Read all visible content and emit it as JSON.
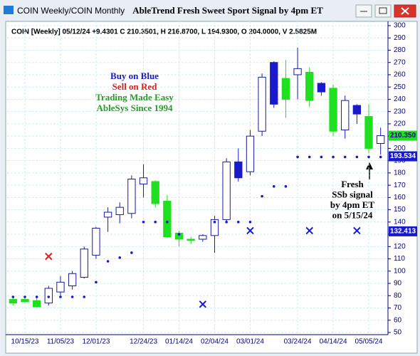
{
  "window": {
    "title": "COIN Weekly/COIN Monthly"
  },
  "chart_data": {
    "type": "candlestick",
    "title": "AbleTrend Fresh Sweet Sport Signal by 4pm ET",
    "subtitle": "COIN [Weekly] 05/12/24 +9.4301 C 210.3501, H 216.8700, L 194.9300, O 204.0000, V 2.5825M",
    "categories": [
      null,
      "10/15/23",
      null,
      null,
      "11/05/23",
      null,
      null,
      "12/01/23",
      null,
      null,
      null,
      "12/24/23",
      null,
      null,
      "01/14/24",
      null,
      null,
      "02/04/24",
      null,
      null,
      "03/01/24",
      null,
      null,
      null,
      "03/24/24",
      null,
      null,
      "04/14/24",
      null,
      null,
      "05/05/24",
      null
    ],
    "open": [
      74,
      75,
      76,
      74,
      83,
      88,
      95,
      113,
      144,
      146,
      147,
      171,
      173,
      157,
      131,
      126,
      126,
      129,
      142,
      189,
      181,
      214,
      270,
      257,
      260,
      262,
      253,
      249,
      215,
      235,
      226,
      204
    ],
    "high": [
      80,
      79,
      78,
      88,
      96,
      100,
      120,
      136,
      152,
      156,
      178,
      187,
      174,
      162,
      133,
      128,
      130,
      145,
      192,
      200,
      215,
      261,
      271,
      272,
      282,
      266,
      254,
      252,
      243,
      236,
      236,
      216.87
    ],
    "low": [
      72,
      74,
      70,
      72,
      80,
      85,
      94,
      110,
      132,
      139,
      143,
      160,
      152,
      127,
      120,
      122,
      124,
      115,
      139,
      173,
      178,
      210,
      233,
      225,
      240,
      234,
      243,
      210,
      208,
      220,
      196,
      194.93
    ],
    "close": [
      77,
      77,
      71,
      86,
      91,
      98,
      118,
      135,
      148,
      152,
      175,
      176,
      155,
      128,
      126,
      125,
      129,
      142,
      189,
      176,
      210,
      258,
      236,
      240,
      265,
      239,
      246,
      214,
      239,
      228,
      200,
      210.35
    ],
    "candle_colors": [
      "#1ee01e",
      "#1ee01e",
      "#1ee01e",
      "#ffffff",
      "#ffffff",
      "#ffffff",
      "#ffffff",
      "#ffffff",
      "#ffffff",
      "#ffffff",
      "#ffffff",
      "#ffffff",
      "#1ee01e",
      "#1ee01e",
      "#1ee01e",
      "#1ee01e",
      "#ffffff",
      "#ffffff",
      "#ffffff",
      "#1a1acc",
      "#ffffff",
      "#ffffff",
      "#1a1acc",
      "#1ee01e",
      "#ffffff",
      "#1ee01e",
      "#1a1acc",
      "#1ee01e",
      "#ffffff",
      "#1a1acc",
      "#1ee01e",
      "#ffffff"
    ],
    "outline_color": "#1a1aa0",
    "stops": {
      "color": "#1a1acc",
      "values": [
        79,
        79,
        79,
        79,
        79,
        79,
        79,
        91,
        108,
        111,
        115,
        140,
        140,
        140,
        130,
        null,
        null,
        140,
        140,
        140,
        140,
        161,
        169,
        169,
        193,
        193,
        193,
        193,
        193,
        193,
        193,
        193
      ]
    },
    "sell_signals": {
      "color": "#e02020",
      "values": [
        null,
        null,
        null,
        112,
        null,
        null,
        null,
        null,
        null,
        null,
        null,
        null,
        null,
        null,
        null,
        null,
        null,
        null,
        null,
        null,
        null,
        null,
        null,
        null,
        null,
        null,
        null,
        null,
        null,
        null,
        null,
        null
      ]
    },
    "buy_signals": {
      "color": "#1a1acc",
      "values": [
        null,
        null,
        null,
        null,
        null,
        null,
        null,
        null,
        null,
        null,
        null,
        null,
        null,
        null,
        null,
        null,
        73,
        null,
        null,
        null,
        133,
        null,
        null,
        null,
        null,
        133,
        null,
        null,
        null,
        133,
        null,
        null
      ]
    },
    "ylim": [
      50,
      300
    ],
    "yticks": [
      50,
      60,
      70,
      80,
      90,
      100,
      110,
      120,
      130,
      140,
      150,
      160,
      170,
      180,
      190,
      200,
      210,
      220,
      230,
      240,
      250,
      260,
      270,
      280,
      290,
      300
    ],
    "grid": true,
    "price_tags": [
      {
        "value": 210.35,
        "label": "210.350",
        "color": "#1ee01e",
        "text_color": "#000080"
      },
      {
        "value": 193.534,
        "label": "193.534",
        "color": "#1a1acc",
        "text_color": "#ffffff"
      },
      {
        "value": 132.413,
        "label": "132.413",
        "color": "#1a1acc",
        "text_color": "#ffffff"
      }
    ],
    "annotations": [
      {
        "text": "Buy on Blue",
        "color": "#1a1acc"
      },
      {
        "text": "Sell on Red",
        "color": "#e02020"
      },
      {
        "text": "Trading Made Easy",
        "color": "#2a9a2a"
      },
      {
        "text": "AbleSys Since 1994",
        "color": "#2a9a2a"
      }
    ],
    "note": [
      "Fresh",
      "SSb signal",
      "by 4pm ET",
      "on 5/15/24"
    ]
  }
}
